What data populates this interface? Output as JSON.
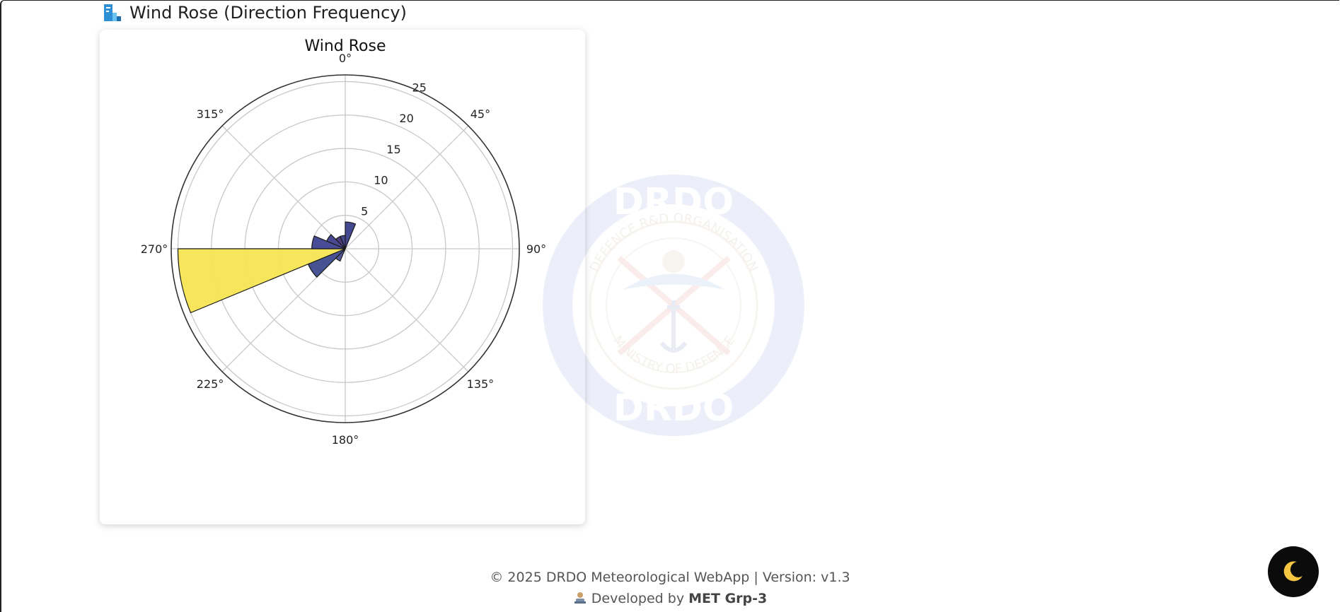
{
  "section": {
    "title": "Wind Rose (Direction Frequency)",
    "icon": "bar-chart-icon"
  },
  "chart_data": {
    "type": "bar",
    "subtype": "polar-wind-rose",
    "title": "Wind Rose",
    "angle_unit": "degrees",
    "theta_zero": "N",
    "theta_direction": "clockwise",
    "angle_ticks": [
      "0°",
      "45°",
      "90°",
      "135°",
      "180°",
      "225°",
      "270°",
      "315°"
    ],
    "radial_ticks": [
      5,
      10,
      15,
      20,
      25
    ],
    "rlim": [
      0,
      26
    ],
    "grid": true,
    "colormap": "viridis",
    "bars": [
      {
        "direction_start": 0,
        "direction_end": 22.5,
        "value": 4,
        "color": "#3b3f8a"
      },
      {
        "direction_start": 202.5,
        "direction_end": 225,
        "value": 2,
        "color": "#4a4f93"
      },
      {
        "direction_start": 225,
        "direction_end": 247.5,
        "value": 6,
        "color": "#3d4a8c"
      },
      {
        "direction_start": 247.5,
        "direction_end": 270,
        "value": 25,
        "color": "#f7e552"
      },
      {
        "direction_start": 270,
        "direction_end": 292.5,
        "value": 5,
        "color": "#3e4291"
      },
      {
        "direction_start": 292.5,
        "direction_end": 315,
        "value": 3,
        "color": "#3f3f8c"
      },
      {
        "direction_start": 315,
        "direction_end": 337.5,
        "value": 2,
        "color": "#44327a"
      },
      {
        "direction_start": 337.5,
        "direction_end": 360,
        "value": 2,
        "color": "#3b3d86"
      }
    ]
  },
  "watermark": {
    "top_text": "DRDO",
    "bottom_text": "DRDO",
    "ring_top": "DEFENCE R&D ORGANISATION",
    "ring_bottom": "MINISTRY OF DEFENCE"
  },
  "footer": {
    "line1": "© 2025 DRDO Meteorological WebApp | Version: v1.3",
    "line2_prefix": "Developed by ",
    "line2_team": "MET Grp-3"
  },
  "theme_toggle": {
    "icon": "moon-icon",
    "accent": "#f5c542"
  }
}
